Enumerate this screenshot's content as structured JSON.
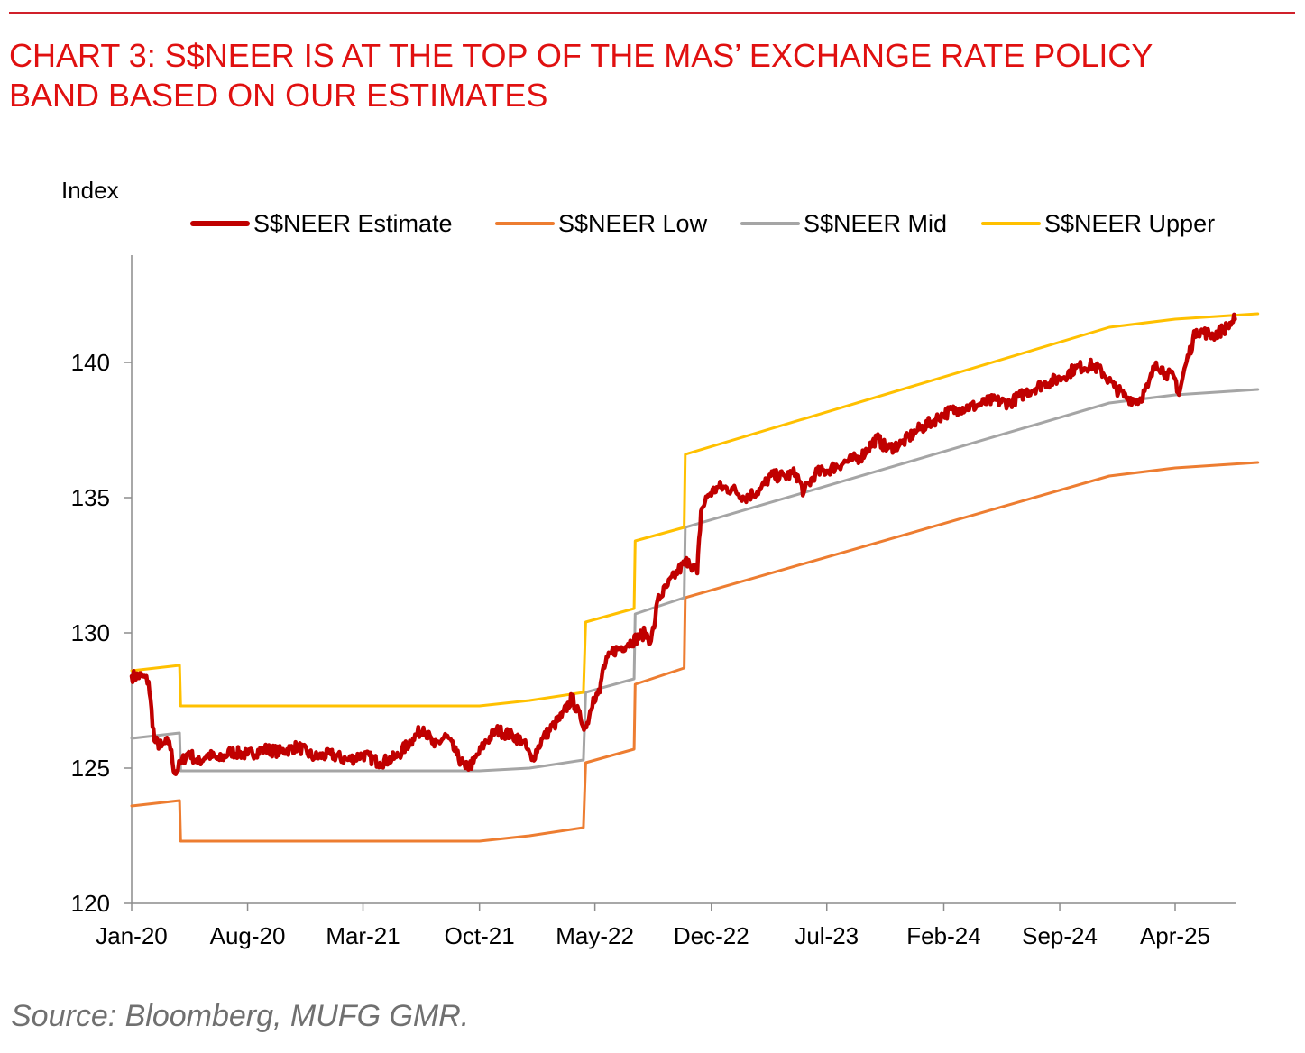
{
  "header": {
    "title_line1": "CHART 3: S$NEER IS AT THE TOP OF THE MAS’ EXCHANGE RATE POLICY",
    "title_line2": "BAND BASED ON OUR ESTIMATES"
  },
  "source": "Source: Bloomberg, MUFG GMR.",
  "colors": {
    "title": "#e01010",
    "estimate": "#c00000",
    "low": "#ed7d31",
    "mid": "#a5a5a5",
    "upper": "#ffc000"
  },
  "chart_data": {
    "type": "line",
    "ylabel": "Index",
    "ylim": [
      120,
      143
    ],
    "yticks": [
      120,
      125,
      130,
      135,
      140
    ],
    "grid": false,
    "legend_position": "top",
    "x_range": [
      "2020-01-01",
      "2025-08-31"
    ],
    "xtick_labels": [
      "Jan-20",
      "Aug-20",
      "Mar-21",
      "Oct-21",
      "May-22",
      "Dec-22",
      "Jul-23",
      "Feb-24",
      "Sep-24",
      "Apr-25"
    ],
    "xtick_dates": [
      "2020-01-01",
      "2020-08-01",
      "2021-03-01",
      "2021-10-01",
      "2022-05-01",
      "2022-12-01",
      "2023-07-01",
      "2024-02-01",
      "2024-09-01",
      "2025-04-01"
    ],
    "series": [
      {
        "name": "S$NEER Estimate",
        "key": "estimate",
        "points": [
          [
            "2020-01-01",
            128.4
          ],
          [
            "2020-01-20",
            128.4
          ],
          [
            "2020-02-01",
            128.2
          ],
          [
            "2020-02-12",
            126.0
          ],
          [
            "2020-02-25",
            125.8
          ],
          [
            "2020-03-10",
            126.0
          ],
          [
            "2020-03-20",
            124.8
          ],
          [
            "2020-04-01",
            125.2
          ],
          [
            "2020-04-15",
            125.6
          ],
          [
            "2020-05-01",
            125.2
          ],
          [
            "2020-05-20",
            125.5
          ],
          [
            "2020-06-10",
            125.3
          ],
          [
            "2020-07-01",
            125.6
          ],
          [
            "2020-08-01",
            125.5
          ],
          [
            "2020-09-01",
            125.7
          ],
          [
            "2020-10-01",
            125.6
          ],
          [
            "2020-11-01",
            125.8
          ],
          [
            "2020-12-01",
            125.4
          ],
          [
            "2021-01-01",
            125.5
          ],
          [
            "2021-02-01",
            125.3
          ],
          [
            "2021-03-01",
            125.5
          ],
          [
            "2021-04-01",
            125.2
          ],
          [
            "2021-05-01",
            125.4
          ],
          [
            "2021-06-01",
            126.1
          ],
          [
            "2021-06-20",
            126.5
          ],
          [
            "2021-07-10",
            125.8
          ],
          [
            "2021-08-01",
            126.2
          ],
          [
            "2021-08-20",
            125.5
          ],
          [
            "2021-09-05",
            125.0
          ],
          [
            "2021-09-20",
            125.2
          ],
          [
            "2021-10-10",
            125.9
          ],
          [
            "2021-11-01",
            126.4
          ],
          [
            "2021-12-01",
            126.2
          ],
          [
            "2021-12-20",
            126.0
          ],
          [
            "2022-01-05",
            125.3
          ],
          [
            "2022-01-25",
            126.1
          ],
          [
            "2022-02-15",
            126.6
          ],
          [
            "2022-03-01",
            126.9
          ],
          [
            "2022-03-20",
            127.6
          ],
          [
            "2022-04-05",
            126.8
          ],
          [
            "2022-04-15",
            126.5
          ],
          [
            "2022-04-28",
            127.6
          ],
          [
            "2022-05-10",
            127.8
          ],
          [
            "2022-05-15",
            128.6
          ],
          [
            "2022-06-01",
            129.3
          ],
          [
            "2022-07-01",
            129.6
          ],
          [
            "2022-08-01",
            130.0
          ],
          [
            "2022-08-12",
            129.7
          ],
          [
            "2022-08-20",
            130.5
          ],
          [
            "2022-08-24",
            131.2
          ],
          [
            "2022-09-10",
            131.7
          ],
          [
            "2022-10-01",
            132.3
          ],
          [
            "2022-10-20",
            132.7
          ],
          [
            "2022-11-05",
            132.2
          ],
          [
            "2022-11-12",
            134.5
          ],
          [
            "2022-11-25",
            135.1
          ],
          [
            "2022-12-15",
            135.4
          ],
          [
            "2023-01-10",
            135.3
          ],
          [
            "2023-02-01",
            135.0
          ],
          [
            "2023-03-01",
            135.3
          ],
          [
            "2023-03-20",
            135.8
          ],
          [
            "2023-04-15",
            135.8
          ],
          [
            "2023-05-05",
            135.9
          ],
          [
            "2023-05-20",
            135.2
          ],
          [
            "2023-06-10",
            135.9
          ],
          [
            "2023-07-01",
            136.0
          ],
          [
            "2023-08-01",
            136.3
          ],
          [
            "2023-09-01",
            136.5
          ],
          [
            "2023-10-01",
            137.2
          ],
          [
            "2023-10-20",
            136.8
          ],
          [
            "2023-11-15",
            137.0
          ],
          [
            "2023-12-15",
            137.5
          ],
          [
            "2024-01-10",
            137.8
          ],
          [
            "2024-02-01",
            138.1
          ],
          [
            "2024-03-01",
            138.3
          ],
          [
            "2024-04-01",
            138.4
          ],
          [
            "2024-05-01",
            138.6
          ],
          [
            "2024-06-01",
            138.5
          ],
          [
            "2024-07-01",
            138.9
          ],
          [
            "2024-08-01",
            139.2
          ],
          [
            "2024-09-01",
            139.4
          ],
          [
            "2024-10-01",
            139.8
          ],
          [
            "2024-11-01",
            139.9
          ],
          [
            "2024-11-20",
            139.6
          ],
          [
            "2024-12-10",
            139.1
          ],
          [
            "2025-01-01",
            138.7
          ],
          [
            "2025-01-25",
            138.6
          ],
          [
            "2025-02-10",
            139.1
          ],
          [
            "2025-02-25",
            140.0
          ],
          [
            "2025-03-15",
            139.6
          ],
          [
            "2025-04-01",
            139.4
          ],
          [
            "2025-04-08",
            138.8
          ],
          [
            "2025-04-20",
            139.9
          ],
          [
            "2025-05-10",
            141.2
          ],
          [
            "2025-06-10",
            141.0
          ],
          [
            "2025-07-05",
            141.3
          ],
          [
            "2025-07-20",
            141.6
          ]
        ]
      },
      {
        "name": "S$NEER Low",
        "key": "low",
        "points": [
          [
            "2020-01-01",
            123.6
          ],
          [
            "2020-03-29",
            123.8
          ],
          [
            "2020-03-31",
            122.3
          ],
          [
            "2021-10-01",
            122.3
          ],
          [
            "2022-01-01",
            122.5
          ],
          [
            "2022-04-10",
            122.8
          ],
          [
            "2022-04-14",
            125.2
          ],
          [
            "2022-07-12",
            125.7
          ],
          [
            "2022-07-14",
            128.1
          ],
          [
            "2022-10-12",
            128.7
          ],
          [
            "2022-10-14",
            131.3
          ],
          [
            "2024-12-01",
            135.8
          ],
          [
            "2025-04-01",
            136.1
          ],
          [
            "2025-08-31",
            136.3
          ]
        ]
      },
      {
        "name": "S$NEER Mid",
        "key": "mid",
        "points": [
          [
            "2020-01-01",
            126.1
          ],
          [
            "2020-03-29",
            126.3
          ],
          [
            "2020-03-31",
            124.9
          ],
          [
            "2021-10-01",
            124.9
          ],
          [
            "2022-01-01",
            125.0
          ],
          [
            "2022-04-10",
            125.3
          ],
          [
            "2022-04-14",
            127.8
          ],
          [
            "2022-07-12",
            128.3
          ],
          [
            "2022-07-14",
            130.7
          ],
          [
            "2022-10-12",
            131.3
          ],
          [
            "2022-10-14",
            133.9
          ],
          [
            "2024-12-01",
            138.5
          ],
          [
            "2025-04-01",
            138.8
          ],
          [
            "2025-08-31",
            139.0
          ]
        ]
      },
      {
        "name": "S$NEER Upper",
        "key": "upper",
        "points": [
          [
            "2020-01-01",
            128.6
          ],
          [
            "2020-03-29",
            128.8
          ],
          [
            "2020-03-31",
            127.3
          ],
          [
            "2021-10-01",
            127.3
          ],
          [
            "2022-01-01",
            127.5
          ],
          [
            "2022-04-10",
            127.8
          ],
          [
            "2022-04-14",
            130.4
          ],
          [
            "2022-07-12",
            130.9
          ],
          [
            "2022-07-14",
            133.4
          ],
          [
            "2022-10-12",
            133.9
          ],
          [
            "2022-10-14",
            136.6
          ],
          [
            "2024-12-01",
            141.3
          ],
          [
            "2025-04-01",
            141.6
          ],
          [
            "2025-08-31",
            141.8
          ]
        ]
      }
    ]
  }
}
